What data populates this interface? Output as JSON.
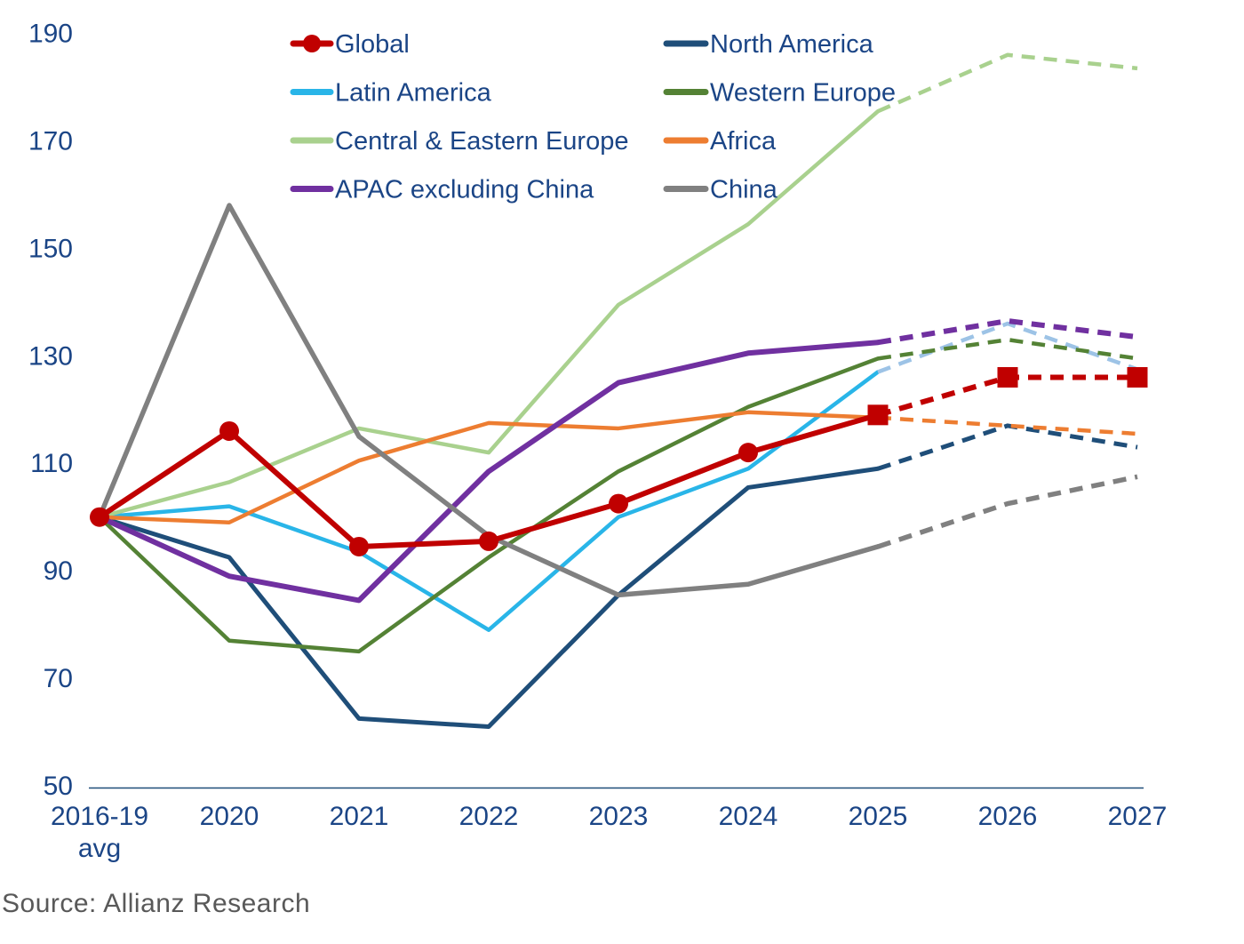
{
  "chart_data": {
    "type": "line",
    "title": "",
    "xlabel": "",
    "ylabel": "",
    "categories": [
      "2016-19\navg",
      "2020",
      "2021",
      "2022",
      "2023",
      "2024",
      "2025",
      "2026",
      "2027"
    ],
    "yticks": [
      50,
      70,
      90,
      110,
      130,
      150,
      170,
      190
    ],
    "ylim": [
      50,
      190
    ],
    "grid": false,
    "legend_position": "top-inside",
    "forecast_start_index": 6,
    "series": [
      {
        "name": "Global",
        "color": "#C00000",
        "width": 6,
        "markers": true,
        "values": [
          100,
          116,
          94.5,
          95.5,
          102.5,
          112,
          119,
          126,
          126
        ]
      },
      {
        "name": "North America",
        "color": "#1F4E79",
        "width": 5,
        "values": [
          100,
          92.5,
          62.5,
          61,
          85.5,
          105.5,
          109,
          117,
          113
        ]
      },
      {
        "name": "Latin America",
        "color": "#29B5E8",
        "forecast_color": "#9DC3E6",
        "width": 4.5,
        "values": [
          100,
          102,
          93.5,
          79,
          100,
          109,
          127,
          136,
          127.5
        ]
      },
      {
        "name": "Western Europe",
        "color": "#548235",
        "width": 4.5,
        "values": [
          100,
          77,
          75,
          92.5,
          108.5,
          120.5,
          129.5,
          133,
          129.5
        ]
      },
      {
        "name": "Central & Eastern Europe",
        "color": "#A9D18E",
        "width": 4.5,
        "values": [
          100,
          106.5,
          116.5,
          112,
          139.5,
          154.5,
          175.5,
          186,
          183.5
        ]
      },
      {
        "name": "Africa",
        "color": "#ED7D31",
        "width": 4.5,
        "values": [
          100,
          99,
          110.5,
          117.5,
          116.5,
          119.5,
          118.5,
          117,
          115.5
        ]
      },
      {
        "name": "APAC excluding China",
        "color": "#7030A0",
        "width": 6,
        "values": [
          100,
          89,
          84.5,
          108.5,
          125,
          130.5,
          132.5,
          136.5,
          133.5
        ]
      },
      {
        "name": "China",
        "color": "#808080",
        "width": 5.5,
        "values": [
          100,
          158,
          115,
          96.5,
          85.5,
          87.5,
          94.5,
          102.5,
          107.5
        ]
      }
    ],
    "legend_columns": [
      [
        "Global",
        "Latin America",
        "Central & Eastern Europe",
        "APAC excluding China"
      ],
      [
        "North America",
        "Western Europe",
        "Africa",
        "China"
      ]
    ]
  },
  "source": {
    "text": "Source: Allianz Research"
  },
  "colors": {
    "axis_text": "#1B4586",
    "axis_line": "#1F4E79",
    "source_text": "#595959"
  }
}
